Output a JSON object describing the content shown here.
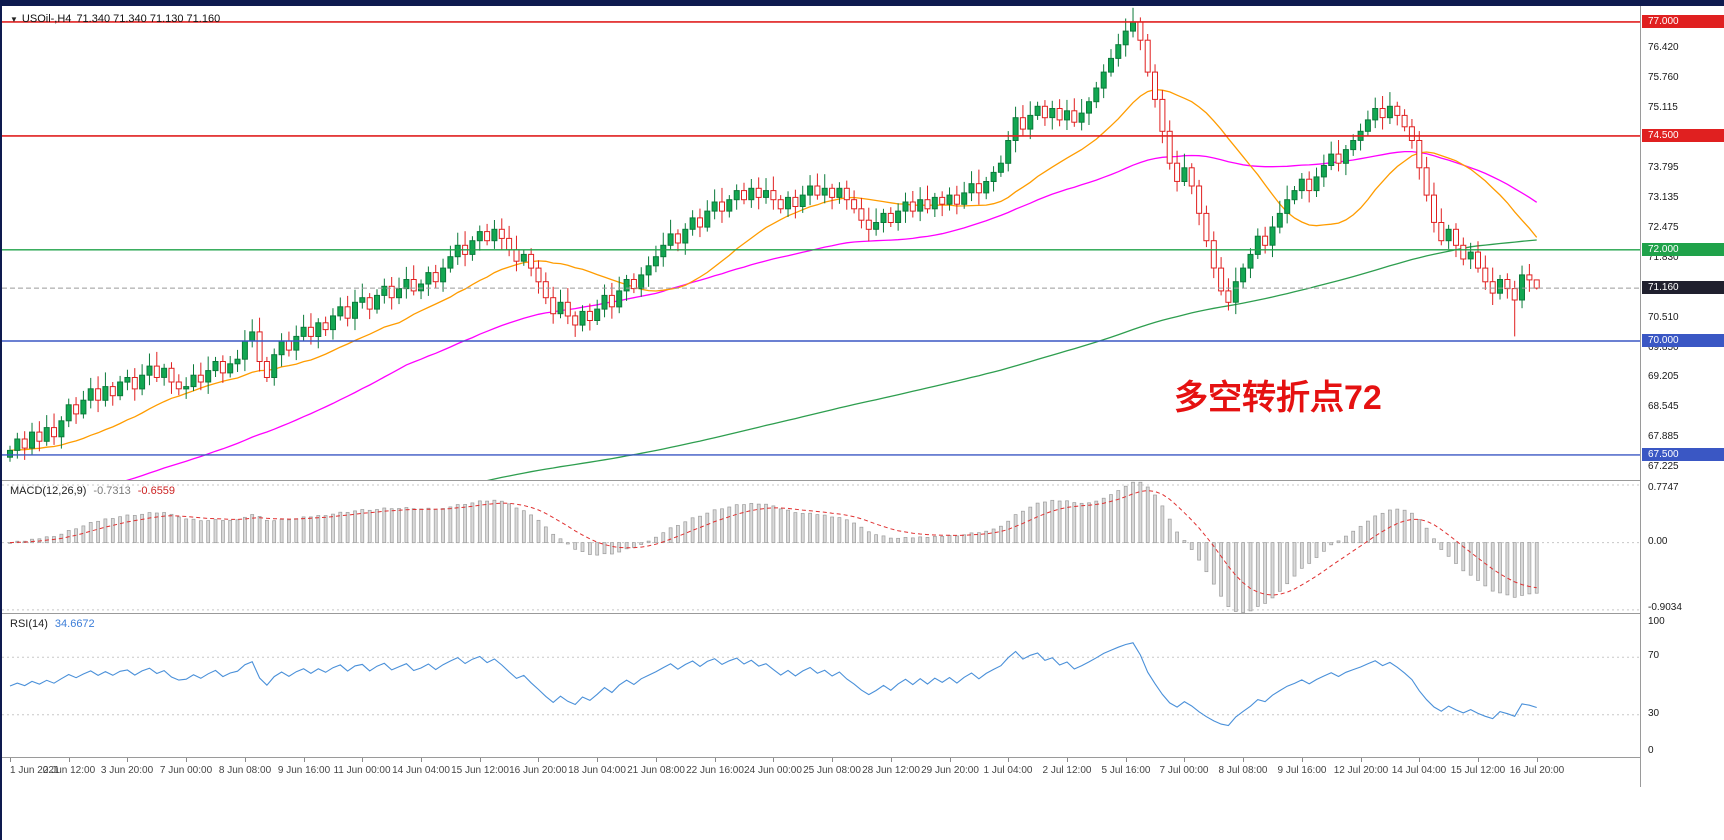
{
  "window": {
    "edge_color": "#0e1a4f"
  },
  "header": {
    "dropdown_icon": "▼",
    "symbol_timeframe": "USOil-,H4",
    "ohlc_text": "71.340 71.340 71.130 71.160"
  },
  "annotation": {
    "text": "多空转折点72",
    "color": "#e51111"
  },
  "price_axis": {
    "scale_labels": [
      {
        "text": "76.420",
        "price": 76.42
      },
      {
        "text": "75.760",
        "price": 75.76
      },
      {
        "text": "75.115",
        "price": 75.115
      },
      {
        "text": "73.795",
        "price": 73.795
      },
      {
        "text": "73.135",
        "price": 73.135
      },
      {
        "text": "72.475",
        "price": 72.475
      },
      {
        "text": "71.830",
        "price": 71.83
      },
      {
        "text": "70.510",
        "price": 70.51
      },
      {
        "text": "69.850",
        "price": 69.85
      },
      {
        "text": "69.205",
        "price": 69.205
      },
      {
        "text": "68.545",
        "price": 68.545
      },
      {
        "text": "67.885",
        "price": 67.885
      },
      {
        "text": "67.225",
        "price": 67.225
      }
    ],
    "line_badges": [
      {
        "text": "77.000",
        "price": 77.0,
        "color": "#e02020"
      },
      {
        "text": "74.500",
        "price": 74.5,
        "color": "#e02020"
      },
      {
        "text": "72.000",
        "price": 72.0,
        "color": "#1fa24a"
      },
      {
        "text": "70.000",
        "price": 70.0,
        "color": "#3a57c4"
      },
      {
        "text": "67.500",
        "price": 67.5,
        "color": "#3a57c4"
      }
    ],
    "current": {
      "text": "71.160",
      "price": 71.16,
      "color": "#20202e"
    }
  },
  "chart_data": {
    "type": "candlestick",
    "title": "USOil-,H4",
    "y_range": [
      66.95,
      77.35
    ],
    "first_open": 67.45,
    "closes": [
      67.6,
      67.85,
      67.65,
      68.0,
      67.8,
      68.1,
      67.9,
      68.25,
      68.6,
      68.4,
      68.7,
      68.95,
      68.7,
      69.0,
      68.8,
      69.1,
      69.2,
      68.95,
      69.25,
      69.45,
      69.2,
      69.4,
      69.1,
      68.95,
      69.0,
      69.25,
      69.1,
      69.35,
      69.55,
      69.3,
      69.5,
      69.6,
      70.0,
      70.2,
      69.55,
      69.2,
      69.7,
      70.0,
      69.8,
      70.1,
      70.3,
      70.1,
      70.4,
      70.25,
      70.55,
      70.75,
      70.5,
      70.85,
      70.95,
      70.7,
      71.0,
      71.2,
      70.95,
      71.15,
      71.35,
      71.1,
      71.25,
      71.5,
      71.3,
      71.6,
      71.85,
      72.1,
      71.9,
      72.2,
      72.4,
      72.2,
      72.45,
      72.25,
      72.0,
      71.75,
      71.9,
      71.6,
      71.3,
      70.95,
      70.6,
      70.85,
      70.55,
      70.35,
      70.65,
      70.45,
      70.7,
      71.0,
      70.75,
      71.1,
      71.35,
      71.15,
      71.45,
      71.65,
      71.85,
      72.1,
      72.35,
      72.15,
      72.45,
      72.7,
      72.5,
      72.85,
      73.05,
      72.85,
      73.1,
      73.3,
      73.1,
      73.35,
      73.15,
      73.3,
      73.1,
      72.9,
      73.15,
      72.95,
      73.2,
      73.4,
      73.2,
      73.35,
      73.15,
      73.35,
      73.1,
      72.9,
      72.65,
      72.45,
      72.6,
      72.8,
      72.6,
      72.85,
      73.05,
      72.85,
      73.1,
      72.9,
      73.15,
      73.0,
      73.2,
      73.0,
      73.25,
      73.45,
      73.25,
      73.5,
      73.7,
      73.9,
      74.4,
      74.9,
      74.65,
      74.95,
      75.15,
      74.9,
      75.1,
      74.85,
      75.05,
      74.8,
      75.0,
      75.25,
      75.55,
      75.9,
      76.2,
      76.5,
      76.8,
      77.0,
      76.6,
      75.9,
      75.3,
      74.6,
      73.9,
      73.5,
      73.8,
      73.4,
      72.8,
      72.2,
      71.6,
      71.1,
      70.85,
      71.3,
      71.6,
      71.9,
      72.3,
      72.1,
      72.5,
      72.8,
      73.1,
      73.3,
      73.55,
      73.3,
      73.6,
      73.85,
      74.1,
      73.9,
      74.2,
      74.4,
      74.6,
      74.85,
      75.1,
      74.9,
      75.15,
      74.95,
      74.7,
      74.4,
      73.8,
      73.2,
      72.6,
      72.2,
      72.45,
      72.1,
      71.8,
      71.95,
      71.6,
      71.3,
      71.05,
      71.35,
      71.15,
      70.9,
      71.45,
      71.34,
      71.16
    ],
    "wick_overrides": {
      "205": {
        "low": 70.1
      },
      "208": {
        "high": 71.34,
        "low": 71.13
      }
    },
    "candle_colors": {
      "up_fill": "#12a752",
      "up_stroke": "#0b7a3a",
      "down_fill": "#ffffff",
      "down_stroke": "#e02020"
    },
    "h_lines": [
      {
        "price": 77.0,
        "color": "#e02020",
        "width": 1.6
      },
      {
        "price": 74.5,
        "color": "#e02020",
        "width": 1.6
      },
      {
        "price": 72.0,
        "color": "#1fa24a",
        "width": 1.4
      },
      {
        "price": 70.0,
        "color": "#3a57c4",
        "width": 1.4
      },
      {
        "price": 67.5,
        "color": "#3a57c4",
        "width": 1.4
      }
    ],
    "moving_averages": [
      {
        "name": "ma-fast",
        "period": 20,
        "color": "#ff9c00",
        "pad": "first"
      },
      {
        "name": "ma-mid",
        "period": 55,
        "color": "#ff00ff",
        "pad": 66.3
      },
      {
        "name": "ma-slow",
        "period": 200,
        "color": "#2e9e4f",
        "pad": 65.5
      }
    ],
    "time_labels": [
      "1 Jun 2021",
      "2 Jun 12:00",
      "3 Jun 20:00",
      "7 Jun 00:00",
      "8 Jun 08:00",
      "9 Jun 16:00",
      "11 Jun 00:00",
      "14 Jun 04:00",
      "15 Jun 12:00",
      "16 Jun 20:00",
      "18 Jun 04:00",
      "21 Jun 08:00",
      "22 Jun 16:00",
      "24 Jun 00:00",
      "25 Jun 08:00",
      "28 Jun 12:00",
      "29 Jun 20:00",
      "1 Jul 04:00",
      "2 Jul 12:00",
      "5 Jul 16:00",
      "7 Jul 00:00",
      "8 Jul 08:00",
      "9 Jul 16:00",
      "12 Jul 20:00",
      "14 Jul 04:00",
      "15 Jul 12:00",
      "16 Jul 20:00"
    ],
    "candles_per_label": 8,
    "macd": {
      "label": "MACD(12,26,9)",
      "value_main": "-0.7313",
      "value_signal": "-0.6559",
      "fast": 12,
      "slow": 26,
      "signal": 9,
      "axis": {
        "max": 0.7747,
        "max_text": "0.7747",
        "zero_text": "0.00",
        "min": -0.9034,
        "min_text": "-0.9034"
      },
      "bar_fill": "#d9d9d9",
      "bar_stroke": "#9c9c9c",
      "signal_color": "#e03131"
    },
    "rsi": {
      "label": "RSI(14)",
      "value": "34.6672",
      "period": 14,
      "levels": [
        70,
        30
      ],
      "axis_values": [
        100,
        70,
        30,
        0
      ],
      "axis_texts": [
        "100",
        "70",
        "30",
        "0"
      ],
      "line_color": "#4a90d9"
    }
  }
}
